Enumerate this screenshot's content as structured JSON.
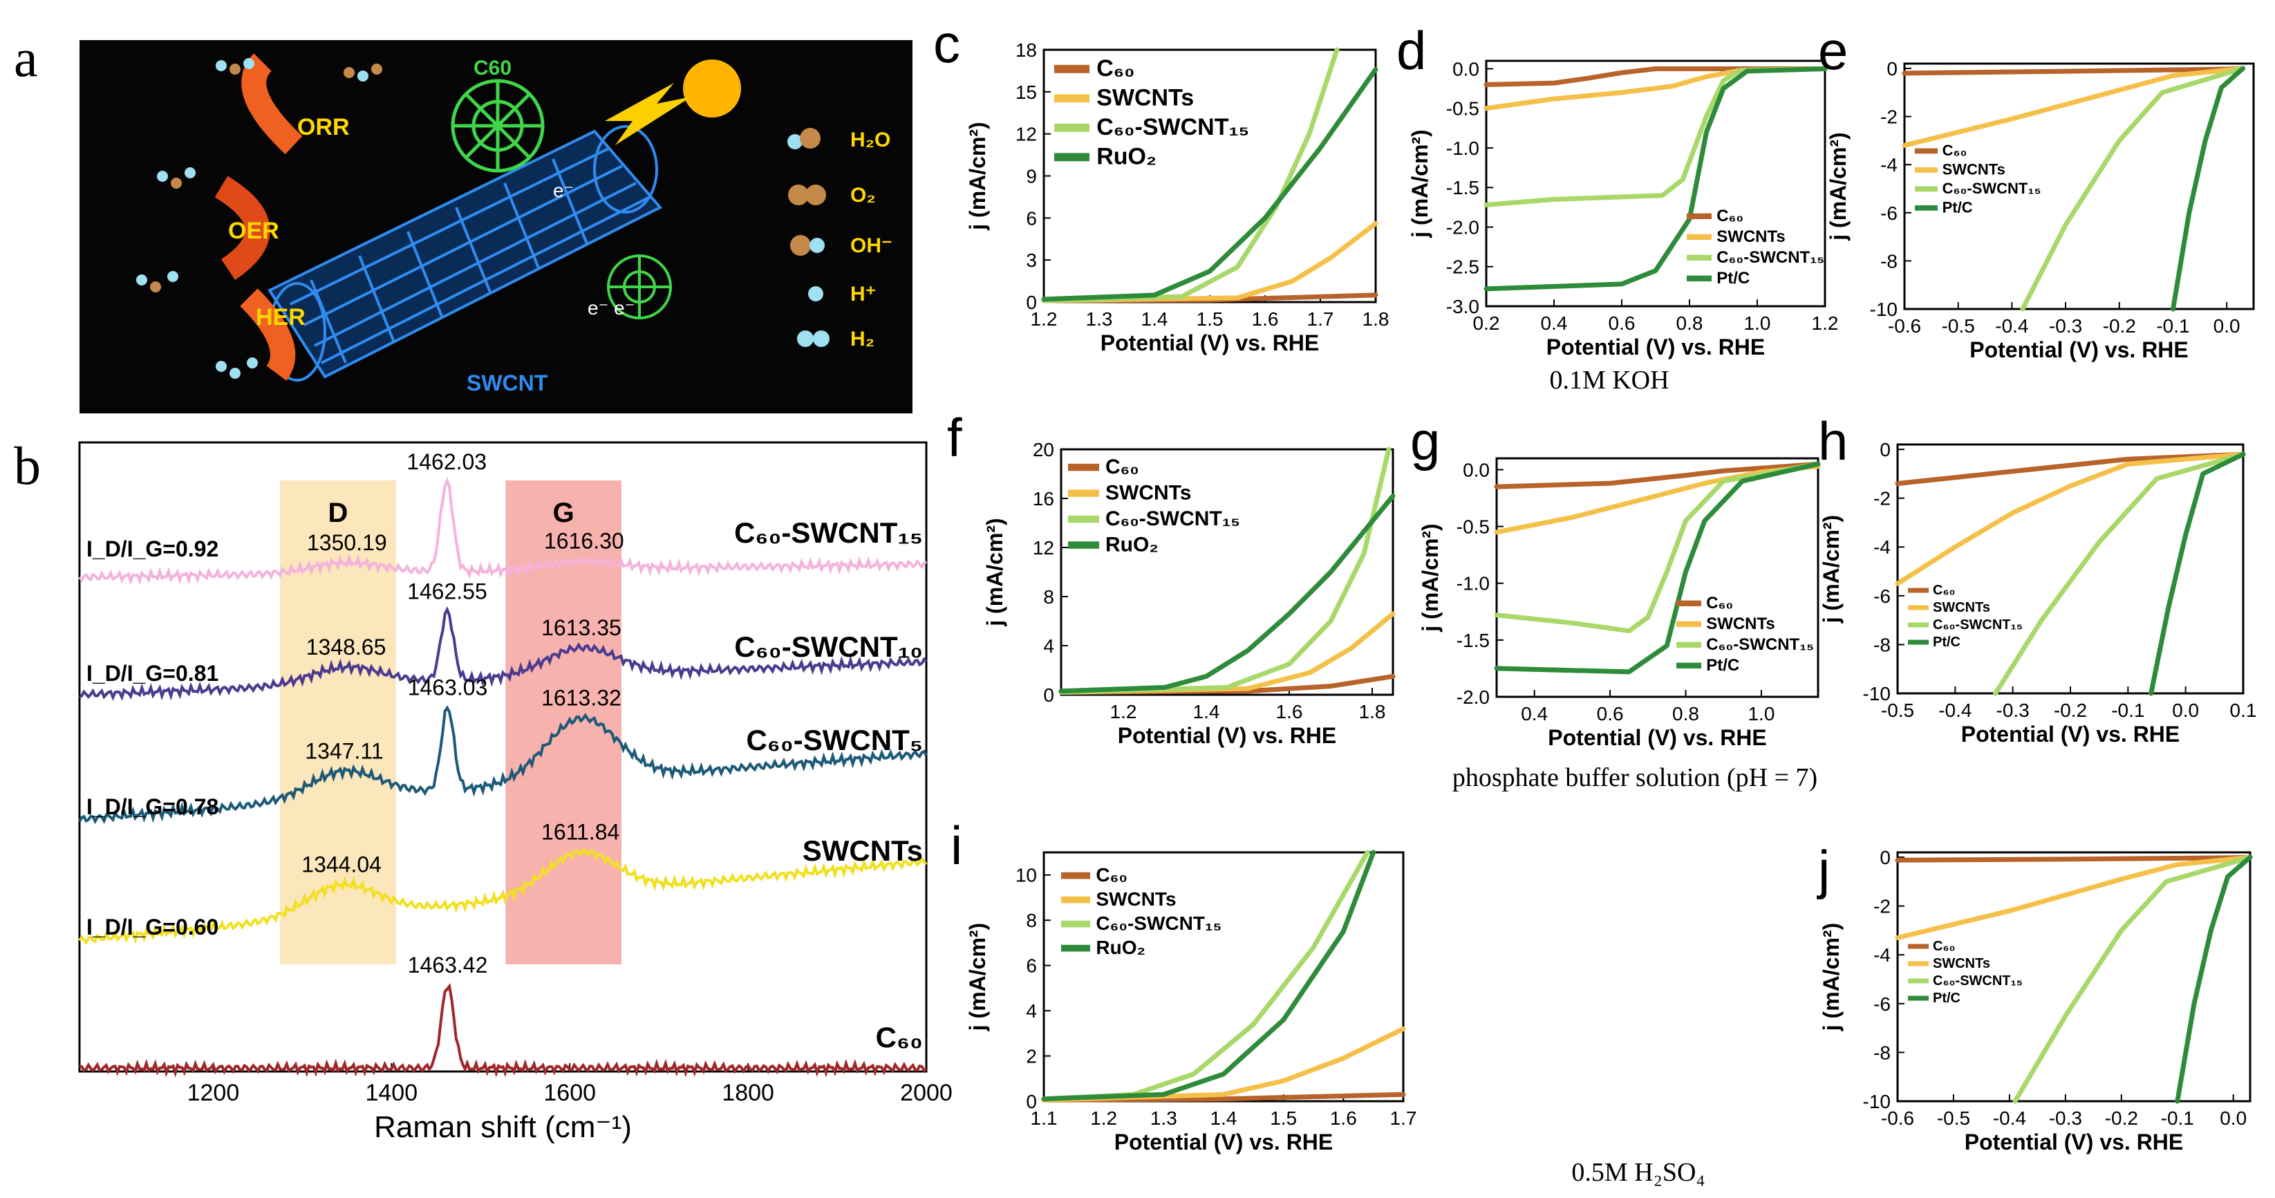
{
  "colors": {
    "c60": "#b8632a",
    "swcnt": "#f5c04a",
    "c60swcnt": "#a9d86a",
    "ref": "#2e8b3a"
  },
  "panels": {
    "a": "a",
    "b": "b",
    "c": "c",
    "d": "d",
    "e": "e",
    "f": "f",
    "g": "g",
    "h": "h",
    "i": "i",
    "j": "j"
  },
  "condition_labels": {
    "koh": "0.1M KOH",
    "pbs": "phosphate buffer solution (pH = 7)",
    "acid": "0.5M H₂SO₄"
  },
  "schematic": {
    "c60": "C60",
    "orr": "ORR",
    "oer": "OER",
    "her": "HER",
    "swcnt": "SWCNT",
    "electron": "e⁻",
    "electron2": "e⁻ e⁻",
    "legend": [
      {
        "label": "H₂O",
        "icon": "h2o-icon"
      },
      {
        "label": "O₂",
        "icon": "o2-icon"
      },
      {
        "label": "OH⁻",
        "icon": "oh-icon"
      },
      {
        "label": "H⁺",
        "icon": "h-icon"
      },
      {
        "label": "H₂",
        "icon": "h2-icon"
      }
    ]
  },
  "chart_data": [
    {
      "id": "b",
      "type": "line",
      "xlabel": "Raman shift (cm⁻¹)",
      "xlim": [
        1050,
        2000
      ],
      "xticks": [
        1200,
        1400,
        1600,
        1800,
        2000
      ],
      "bands": [
        {
          "label": "D",
          "range": [
            1275,
            1405
          ],
          "color": "#fbe2b0"
        },
        {
          "label": "G",
          "range": [
            1528,
            1658
          ],
          "color": "#f6a5a0"
        }
      ],
      "series": [
        {
          "name": "C₆₀-SWCNT₁₅",
          "color": "#f4b2dc",
          "ratio": "I_D/I_G=0.92",
          "peaks": [
            "1350.19",
            "1462.03",
            "1616.30"
          ]
        },
        {
          "name": "C₆₀-SWCNT₁₀",
          "color": "#4b3a90",
          "ratio": "I_D/I_G=0.81",
          "peaks": [
            "1348.65",
            "1462.55",
            "1613.35"
          ]
        },
        {
          "name": "C₆₀-SWCNT₅",
          "color": "#1b5a78",
          "ratio": "I_D/I_G=0.78",
          "peaks": [
            "1347.11",
            "1463.03",
            "1613.32"
          ]
        },
        {
          "name": "SWCNTs",
          "color": "#f2e020",
          "ratio": "I_D/I_G=0.60",
          "peaks": [
            "1344.04",
            "1611.84"
          ]
        },
        {
          "name": "C₆₀",
          "color": "#9e2828",
          "ratio": "",
          "peaks": [
            "1463.42"
          ]
        }
      ]
    },
    {
      "id": "c",
      "type": "line",
      "xlabel": "Potential (V) vs. RHE",
      "ylabel": "j (mA/cm²)",
      "xlim": [
        1.2,
        1.8
      ],
      "ylim": [
        0,
        18
      ],
      "xticks": [
        "1.2",
        "1.3",
        "1.4",
        "1.5",
        "1.6",
        "1.7",
        "1.8"
      ],
      "yticks": [
        "0",
        "3",
        "6",
        "9",
        "12",
        "15",
        "18"
      ],
      "legend": [
        "C₆₀",
        "SWCNTs",
        "C₆₀-SWCNT₁₅",
        "RuO₂"
      ],
      "series": [
        {
          "name": "C₆₀",
          "x": [
            1.2,
            1.5,
            1.8
          ],
          "y": [
            0.1,
            0.15,
            0.5
          ]
        },
        {
          "name": "SWCNTs",
          "x": [
            1.2,
            1.55,
            1.65,
            1.72,
            1.8
          ],
          "y": [
            0.1,
            0.3,
            1.5,
            3.2,
            5.6
          ]
        },
        {
          "name": "C₆₀-SWCNT₁₅",
          "x": [
            1.2,
            1.45,
            1.55,
            1.62,
            1.68,
            1.73
          ],
          "y": [
            0.1,
            0.4,
            2.5,
            6.8,
            12,
            18
          ]
        },
        {
          "name": "RuO₂",
          "x": [
            1.2,
            1.4,
            1.5,
            1.6,
            1.7,
            1.8
          ],
          "y": [
            0.2,
            0.5,
            2.2,
            6,
            11,
            16.6
          ]
        }
      ]
    },
    {
      "id": "d",
      "type": "line",
      "xlabel": "Potential (V) vs. RHE",
      "ylabel": "j (mA/cm²)",
      "xlim": [
        0.2,
        1.2
      ],
      "ylim": [
        -3,
        0.1
      ],
      "xticks": [
        "0.2",
        "0.4",
        "0.6",
        "0.8",
        "1.0",
        "1.2"
      ],
      "yticks": [
        "0.0",
        "-0.5",
        "-1.0",
        "-1.5",
        "-2.0",
        "-2.5",
        "-3.0"
      ],
      "legend": [
        "C₆₀",
        "SWCNTs",
        "C₆₀-SWCNT₁₅",
        "Pt/C"
      ],
      "series": [
        {
          "name": "C₆₀",
          "x": [
            0.2,
            0.4,
            0.5,
            0.6,
            0.7,
            1.2
          ],
          "y": [
            -0.2,
            -0.18,
            -0.12,
            -0.05,
            0,
            0
          ]
        },
        {
          "name": "SWCNTs",
          "x": [
            0.2,
            0.4,
            0.6,
            0.75,
            0.85,
            0.95,
            1.2
          ],
          "y": [
            -0.5,
            -0.38,
            -0.3,
            -0.22,
            -0.1,
            -0.02,
            0
          ]
        },
        {
          "name": "C₆₀-SWCNT₁₅",
          "x": [
            0.2,
            0.4,
            0.72,
            0.78,
            0.85,
            0.9,
            0.95,
            1.2
          ],
          "y": [
            -1.72,
            -1.65,
            -1.6,
            -1.4,
            -0.6,
            -0.15,
            -0.02,
            0
          ]
        },
        {
          "name": "Pt/C",
          "x": [
            0.2,
            0.6,
            0.7,
            0.8,
            0.85,
            0.9,
            0.97,
            1.2
          ],
          "y": [
            -2.78,
            -2.72,
            -2.55,
            -1.9,
            -0.8,
            -0.25,
            -0.03,
            0
          ]
        }
      ]
    },
    {
      "id": "e",
      "type": "line",
      "xlabel": "Potential (V) vs. RHE",
      "ylabel": "j (mA/cm²)",
      "xlim": [
        -0.6,
        0.05
      ],
      "ylim": [
        -10,
        0.2
      ],
      "xticks": [
        "-0.6",
        "-0.5",
        "-0.4",
        "-0.3",
        "-0.2",
        "-0.1",
        "0.0"
      ],
      "yticks": [
        "0",
        "-2",
        "-4",
        "-6",
        "-8",
        "-10"
      ],
      "legend": [
        "C₆₀",
        "SWCNTs",
        "C₆₀-SWCNT₁₅",
        "Pt/C"
      ],
      "series": [
        {
          "name": "C₆₀",
          "x": [
            -0.6,
            -0.3,
            0,
            0.03
          ],
          "y": [
            -0.2,
            -0.12,
            -0.03,
            0
          ]
        },
        {
          "name": "SWCNTs",
          "x": [
            -0.6,
            -0.4,
            -0.2,
            -0.1,
            0.03
          ],
          "y": [
            -3.2,
            -2.1,
            -0.9,
            -0.3,
            0
          ]
        },
        {
          "name": "C₆₀-SWCNT₁₅",
          "x": [
            -0.38,
            -0.3,
            -0.2,
            -0.12,
            0.03
          ],
          "y": [
            -10,
            -6.5,
            -3,
            -1,
            0
          ]
        },
        {
          "name": "Pt/C",
          "x": [
            -0.1,
            -0.07,
            -0.04,
            -0.01,
            0.03
          ],
          "y": [
            -10,
            -6,
            -3,
            -0.8,
            0
          ]
        }
      ]
    },
    {
      "id": "f",
      "type": "line",
      "xlabel": "Potential (V) vs. RHE",
      "ylabel": "j (mA/cm²)",
      "xlim": [
        1.05,
        1.85
      ],
      "ylim": [
        0,
        20
      ],
      "xticks": [
        "1.2",
        "1.4",
        "1.6",
        "1.8"
      ],
      "yticks": [
        "0",
        "4",
        "8",
        "12",
        "16",
        "20"
      ],
      "legend": [
        "C₆₀",
        "SWCNTs",
        "C₆₀-SWCNT₁₅",
        "RuO₂"
      ],
      "series": [
        {
          "name": "C₆₀",
          "x": [
            1.05,
            1.5,
            1.7,
            1.85
          ],
          "y": [
            0.2,
            0.3,
            0.7,
            1.5
          ]
        },
        {
          "name": "SWCNTs",
          "x": [
            1.05,
            1.5,
            1.65,
            1.75,
            1.85
          ],
          "y": [
            0.2,
            0.5,
            1.8,
            3.8,
            6.6
          ]
        },
        {
          "name": "C₆₀-SWCNT₁₅",
          "x": [
            1.05,
            1.45,
            1.6,
            1.7,
            1.78,
            1.84
          ],
          "y": [
            0.2,
            0.6,
            2.5,
            6,
            11.5,
            20
          ]
        },
        {
          "name": "RuO₂",
          "x": [
            1.05,
            1.3,
            1.4,
            1.5,
            1.6,
            1.7,
            1.85
          ],
          "y": [
            0.3,
            0.6,
            1.5,
            3.6,
            6.6,
            10,
            16.2
          ]
        }
      ]
    },
    {
      "id": "g",
      "type": "line",
      "xlabel": "Potential (V) vs. RHE",
      "ylabel": "j (mA/cm²)",
      "xlim": [
        0.3,
        1.15
      ],
      "ylim": [
        -2,
        0.1
      ],
      "xticks": [
        "0.4",
        "0.6",
        "0.8",
        "1.0"
      ],
      "yticks": [
        "0.0",
        "-0.5",
        "-1.0",
        "-1.5",
        "-2.0"
      ],
      "legend": [
        "C₆₀",
        "SWCNTs",
        "C₆₀-SWCNT₁₅",
        "Pt/C"
      ],
      "series": [
        {
          "name": "C₆₀",
          "x": [
            0.3,
            0.6,
            0.8,
            0.9,
            1.15
          ],
          "y": [
            -0.15,
            -0.12,
            -0.05,
            -0.01,
            0.05
          ]
        },
        {
          "name": "SWCNTs",
          "x": [
            0.3,
            0.5,
            0.7,
            0.85,
            1,
            1.15
          ],
          "y": [
            -0.55,
            -0.42,
            -0.25,
            -0.12,
            -0.02,
            0.03
          ]
        },
        {
          "name": "C₆₀-SWCNT₁₅",
          "x": [
            0.3,
            0.5,
            0.65,
            0.7,
            0.75,
            0.8,
            0.9,
            1.15
          ],
          "y": [
            -1.28,
            -1.35,
            -1.42,
            -1.3,
            -0.9,
            -0.45,
            -0.1,
            0.05
          ]
        },
        {
          "name": "Pt/C",
          "x": [
            0.3,
            0.65,
            0.75,
            0.8,
            0.85,
            0.95,
            1.15
          ],
          "y": [
            -1.75,
            -1.78,
            -1.55,
            -0.9,
            -0.45,
            -0.1,
            0.05
          ]
        }
      ]
    },
    {
      "id": "h",
      "type": "line",
      "xlabel": "Potential (V) vs. RHE",
      "ylabel": "j (mA/cm²)",
      "xlim": [
        -0.5,
        0.1
      ],
      "ylim": [
        -10,
        0.2
      ],
      "xticks": [
        "-0.5",
        "-0.4",
        "-0.3",
        "-0.2",
        "-0.1",
        "0.0",
        "0.1"
      ],
      "yticks": [
        "0",
        "-2",
        "-4",
        "-6",
        "-8",
        "-10"
      ],
      "legend": [
        "C₆₀",
        "SWCNTs",
        "C₆₀-SWCNT₁₅",
        "Pt/C"
      ],
      "series": [
        {
          "name": "C₆₀",
          "x": [
            -0.5,
            -0.3,
            -0.1,
            0.1
          ],
          "y": [
            -1.4,
            -0.9,
            -0.4,
            -0.2
          ]
        },
        {
          "name": "SWCNTs",
          "x": [
            -0.5,
            -0.4,
            -0.3,
            -0.2,
            -0.1,
            0.1
          ],
          "y": [
            -5.5,
            -4,
            -2.6,
            -1.5,
            -0.6,
            -0.2
          ]
        },
        {
          "name": "C₆₀-SWCNT₁₅",
          "x": [
            -0.33,
            -0.25,
            -0.15,
            -0.05,
            0.1
          ],
          "y": [
            -10,
            -7,
            -3.8,
            -1.2,
            -0.2
          ]
        },
        {
          "name": "Pt/C",
          "x": [
            -0.06,
            -0.03,
            0,
            0.03,
            0.1
          ],
          "y": [
            -10,
            -6.5,
            -3.5,
            -1,
            -0.2
          ]
        }
      ]
    },
    {
      "id": "i",
      "type": "line",
      "xlabel": "Potential (V) vs. RHE",
      "ylabel": "j (mA/cm²)",
      "xlim": [
        1.1,
        1.7
      ],
      "ylim": [
        0,
        11
      ],
      "xticks": [
        "1.1",
        "1.2",
        "1.3",
        "1.4",
        "1.5",
        "1.6",
        "1.7"
      ],
      "yticks": [
        "0",
        "2",
        "4",
        "6",
        "8",
        "10"
      ],
      "legend": [
        "C₆₀",
        "SWCNTs",
        "C₆₀-SWCNT₁₅",
        "RuO₂"
      ],
      "series": [
        {
          "name": "C₆₀",
          "x": [
            1.1,
            1.4,
            1.7
          ],
          "y": [
            0.05,
            0.1,
            0.3
          ]
        },
        {
          "name": "SWCNTs",
          "x": [
            1.1,
            1.4,
            1.5,
            1.6,
            1.7
          ],
          "y": [
            0.05,
            0.3,
            0.9,
            1.9,
            3.2
          ]
        },
        {
          "name": "C₆₀-SWCNT₁₅",
          "x": [
            1.1,
            1.25,
            1.35,
            1.45,
            1.55,
            1.64
          ],
          "y": [
            0.1,
            0.3,
            1.2,
            3.4,
            6.8,
            11
          ]
        },
        {
          "name": "RuO₂",
          "x": [
            1.1,
            1.3,
            1.4,
            1.5,
            1.6,
            1.65
          ],
          "y": [
            0.1,
            0.3,
            1.2,
            3.6,
            7.5,
            11
          ]
        }
      ]
    },
    {
      "id": "j",
      "type": "line",
      "xlabel": "Potential (V) vs. RHE",
      "ylabel": "j (mA/cm²)",
      "xlim": [
        -0.6,
        0.03
      ],
      "ylim": [
        -10,
        0.2
      ],
      "xticks": [
        "-0.6",
        "-0.5",
        "-0.4",
        "-0.3",
        "-0.2",
        "-0.1",
        "0.0"
      ],
      "yticks": [
        "0",
        "-2",
        "-4",
        "-6",
        "-8",
        "-10"
      ],
      "legend": [
        "C₆₀",
        "SWCNTs",
        "C₆₀-SWCNT₁₅",
        "Pt/C"
      ],
      "series": [
        {
          "name": "C₆₀",
          "x": [
            -0.6,
            -0.3,
            0,
            0.03
          ],
          "y": [
            -0.12,
            -0.08,
            -0.02,
            0
          ]
        },
        {
          "name": "SWCNTs",
          "x": [
            -0.6,
            -0.4,
            -0.2,
            -0.1,
            0.03
          ],
          "y": [
            -3.3,
            -2.2,
            -0.9,
            -0.3,
            0
          ]
        },
        {
          "name": "C₆₀-SWCNT₁₅",
          "x": [
            -0.39,
            -0.3,
            -0.2,
            -0.12,
            0.03
          ],
          "y": [
            -10,
            -6.5,
            -3,
            -1,
            0
          ]
        },
        {
          "name": "Pt/C",
          "x": [
            -0.1,
            -0.07,
            -0.04,
            -0.01,
            0.03
          ],
          "y": [
            -10,
            -6,
            -3,
            -0.8,
            0
          ]
        }
      ]
    }
  ]
}
